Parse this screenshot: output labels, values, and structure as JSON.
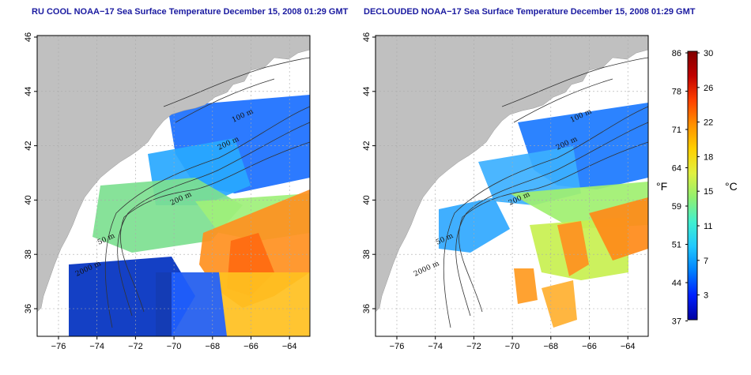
{
  "panels": [
    {
      "title": "RU COOL NOAA−17 Sea Surface Temperature December 15, 2008 01:29 GMT",
      "product": "raw",
      "contour_labels": [
        "100 m",
        "200 m",
        "50 m",
        "200 m",
        "2000 m"
      ]
    },
    {
      "title": "DECLOUDED NOAA−17 Sea Surface Temperature December 15, 2008 01:29 GMT",
      "product": "declouded",
      "contour_labels": [
        "100 m",
        "200 m",
        "50 m",
        "200 m",
        "2000 m"
      ]
    }
  ],
  "axes": {
    "lon_ticks": [
      "−76",
      "−74",
      "−72",
      "−70",
      "−68",
      "−66",
      "−64"
    ],
    "lat_ticks": [
      "36",
      "38",
      "40",
      "42",
      "44",
      "46"
    ]
  },
  "colorbar": {
    "fahrenheit_ticks": [
      "86",
      "78",
      "71",
      "64",
      "59",
      "51",
      "44",
      "37"
    ],
    "celsius_ticks": [
      "30",
      "26",
      "22",
      "18",
      "15",
      "11",
      "7",
      "3"
    ],
    "fahrenheit_unit": "°F",
    "celsius_unit": "°C",
    "colors": [
      "#0000a0",
      "#0020ff",
      "#0080ff",
      "#20c8ff",
      "#40f0d0",
      "#90f070",
      "#e0f040",
      "#ffd000",
      "#ff9000",
      "#ff4000",
      "#c00000",
      "#800000"
    ]
  },
  "map_colors": {
    "land": "#c0c0c0",
    "no_data": "#ffffff",
    "contour": "#333333",
    "grid": "#aaaaaa"
  }
}
